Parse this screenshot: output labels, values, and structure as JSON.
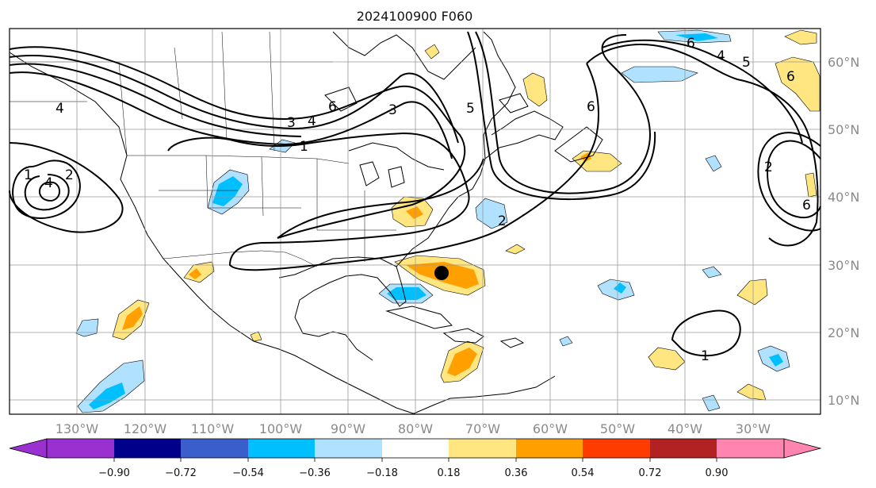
{
  "title": "2024100900 F060",
  "map": {
    "lon_labels": [
      "130°W",
      "120°W",
      "110°W",
      "100°W",
      "90°W",
      "80°W",
      "70°W",
      "60°W",
      "50°W",
      "40°W",
      "30°W"
    ],
    "lat_labels": [
      "60°N",
      "50°N",
      "40°N",
      "30°N",
      "20°N",
      "10°N"
    ],
    "marker": "storm-center-dot",
    "contour_labels": [
      "4",
      "2",
      "4",
      "6",
      "4",
      "1",
      "3",
      "5",
      "6",
      "2",
      "1",
      "6",
      "4",
      "5",
      "6",
      "2",
      "6",
      "1",
      "3"
    ]
  },
  "colorbar": {
    "ticks": [
      "−0.90",
      "−0.72",
      "−0.54",
      "−0.36",
      "−0.18",
      "0.18",
      "0.36",
      "0.54",
      "0.72",
      "0.90"
    ],
    "colors": [
      "#9b30d0",
      "#00008b",
      "#3a5fcd",
      "#00bfff",
      "#b0e2ff",
      "#ffffff",
      "#ffe680",
      "#ffa000",
      "#ff3c00",
      "#b22222",
      "#ff85b0"
    ]
  }
}
